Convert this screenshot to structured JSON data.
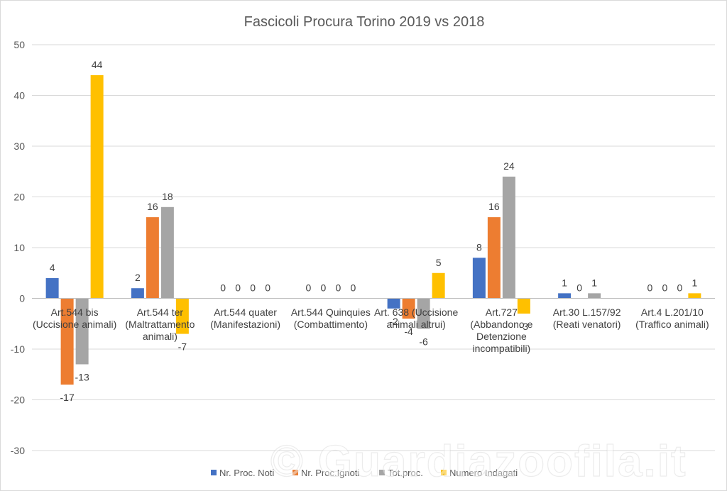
{
  "chart_data": {
    "type": "bar",
    "title": "Fascicoli Procura Torino  2019 vs 2018",
    "ylim": [
      -30,
      50
    ],
    "yticks": [
      -30,
      -20,
      -10,
      0,
      10,
      20,
      30,
      40,
      50
    ],
    "grid": true,
    "legend_position": "bottom",
    "categories": [
      [
        "Art.544 bis",
        "(Uccisione animali)"
      ],
      [
        "Art.544 ter",
        "(Maltrattamento",
        "animali)"
      ],
      [
        "Art.544 quater",
        "(Manifestazioni)"
      ],
      [
        "Art.544 Quinquies",
        "(Combattimento)"
      ],
      [
        "Art. 638 (Uccisione",
        "animali altrui)"
      ],
      [
        "Art.727",
        "(Abbandono e",
        "Detenzione",
        "incompatibili)"
      ],
      [
        "Art.30 L.157/92",
        "(Reati venatori)"
      ],
      [
        "Art.4 L.201/10",
        "(Traffico animali)"
      ]
    ],
    "series": [
      {
        "name": "Nr. Proc. Noti",
        "color": "#4472c4",
        "values": [
          4,
          2,
          0,
          0,
          -2,
          8,
          1,
          0
        ]
      },
      {
        "name": "Nr. Proc.Ignoti",
        "color": "#ed7d31",
        "values": [
          -17,
          16,
          0,
          0,
          -4,
          16,
          0,
          0
        ]
      },
      {
        "name": "Tot.proc.",
        "color": "#a5a5a5",
        "values": [
          -13,
          18,
          0,
          0,
          -6,
          24,
          1,
          0
        ]
      },
      {
        "name": "Numero Indagati",
        "color": "#ffc000",
        "values": [
          44,
          -7,
          0,
          0,
          5,
          -3,
          null,
          1
        ]
      }
    ]
  },
  "watermark": "© Guardiazoofila.it"
}
